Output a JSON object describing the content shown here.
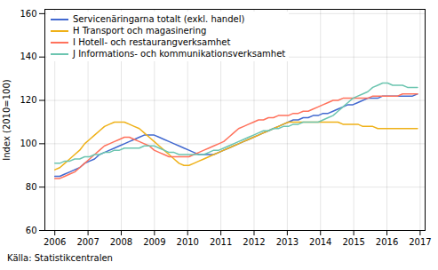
{
  "chart_data": {
    "type": "line",
    "ylabel": "Index (2010=100)",
    "source": "Källa: Statistikcentralen",
    "x": [
      2006.0,
      2006.1496,
      2006.2992,
      2006.4488,
      2006.5984,
      2006.7479,
      2006.8975,
      2007.0471,
      2007.1967,
      2007.3463,
      2007.4959,
      2007.6455,
      2007.7951,
      2007.9447,
      2008.0942,
      2008.2438,
      2008.3934,
      2008.543,
      2008.6926,
      2008.8422,
      2008.9918,
      2009.1414,
      2009.291,
      2009.4405,
      2009.5901,
      2009.7397,
      2009.8893,
      2010.0389,
      2010.1885,
      2010.3381,
      2010.4877,
      2010.6373,
      2010.7868,
      2010.9364,
      2011.086,
      2011.2356,
      2011.3852,
      2011.5348,
      2011.6844,
      2011.834,
      2011.9836,
      2012.1332,
      2012.2827,
      2012.4323,
      2012.5819,
      2012.7315,
      2012.8811,
      2013.0307,
      2013.1803,
      2013.3299,
      2013.4795,
      2013.629,
      2013.7786,
      2013.9282,
      2014.0778,
      2014.2274,
      2014.377,
      2014.5266,
      2014.6762,
      2014.8258,
      2014.9753,
      2015.1249,
      2015.2745,
      2015.4241,
      2015.5737,
      2015.7233,
      2015.8729,
      2016.0225,
      2016.1721,
      2016.3216,
      2016.4712,
      2016.6208,
      2016.7704,
      2016.92
    ],
    "series": [
      {
        "name": "Servicenäringarna totalt (exkl. handel)",
        "values": [
          85,
          85,
          86,
          87,
          88,
          89,
          91,
          92,
          93,
          95,
          96,
          97,
          98,
          99,
          100,
          101,
          102,
          103,
          104,
          104,
          104,
          103,
          102,
          101,
          100,
          99,
          98,
          97,
          96,
          95,
          95,
          95,
          95,
          96,
          97,
          98,
          99,
          100,
          101,
          102,
          103,
          104,
          105,
          106,
          107,
          108,
          109,
          110,
          111,
          111,
          112,
          112,
          113,
          113,
          114,
          114,
          115,
          116,
          117,
          118,
          118,
          119,
          120,
          121,
          121,
          121,
          122,
          122,
          122,
          122,
          122,
          122,
          122,
          123
        ]
      },
      {
        "name": "H Transport och magasinering",
        "values": [
          88,
          89,
          91,
          93,
          95,
          97,
          100,
          102,
          104,
          106,
          108,
          109,
          110,
          110,
          110,
          109,
          108,
          107,
          105,
          103,
          101,
          99,
          97,
          95,
          93,
          91,
          90,
          90,
          91,
          92,
          93,
          94,
          95,
          96,
          97,
          98,
          99,
          100,
          101,
          102,
          103,
          104,
          105,
          106,
          107,
          108,
          109,
          110,
          110,
          110,
          110,
          110,
          110,
          110,
          110,
          110,
          110,
          110,
          109,
          109,
          109,
          109,
          108,
          108,
          108,
          107,
          107,
          107,
          107,
          107,
          107,
          107,
          107,
          107
        ]
      },
      {
        "name": "I Hotell- och restaurangverksamhet",
        "values": [
          84,
          84,
          85,
          86,
          87,
          89,
          91,
          93,
          95,
          97,
          99,
          100,
          101,
          102,
          103,
          103,
          102,
          101,
          100,
          99,
          97,
          96,
          95,
          94,
          94,
          94,
          94,
          94,
          95,
          96,
          97,
          98,
          99,
          100,
          101,
          103,
          105,
          107,
          108,
          109,
          110,
          111,
          111,
          112,
          112,
          113,
          113,
          113,
          114,
          114,
          115,
          115,
          116,
          117,
          118,
          119,
          120,
          120,
          121,
          121,
          121,
          121,
          121,
          121,
          122,
          122,
          122,
          122,
          122,
          122,
          123,
          123,
          123,
          123
        ]
      },
      {
        "name": "J Informations- och kommunikationsverksamhet",
        "values": [
          91,
          91,
          92,
          92,
          93,
          93,
          94,
          94,
          95,
          95,
          96,
          96,
          97,
          97,
          98,
          98,
          98,
          98,
          99,
          99,
          99,
          98,
          97,
          96,
          96,
          95,
          95,
          95,
          95,
          95,
          95,
          96,
          97,
          97,
          98,
          99,
          100,
          101,
          102,
          103,
          104,
          105,
          106,
          106,
          107,
          107,
          108,
          108,
          109,
          109,
          110,
          110,
          110,
          110,
          111,
          112,
          113,
          115,
          117,
          119,
          121,
          122,
          123,
          124,
          126,
          127,
          128,
          128,
          127,
          127,
          127,
          126,
          126,
          126
        ]
      }
    ],
    "xlim": [
      2005.7,
      2017.15
    ],
    "xticks": [
      2006,
      2007,
      2008,
      2009,
      2010,
      2011,
      2012,
      2013,
      2014,
      2015,
      2016,
      2017
    ],
    "ylim": [
      60,
      162
    ],
    "yticks": [
      60,
      80,
      100,
      120,
      140,
      160
    ],
    "grid": true,
    "legend": "upper left"
  }
}
